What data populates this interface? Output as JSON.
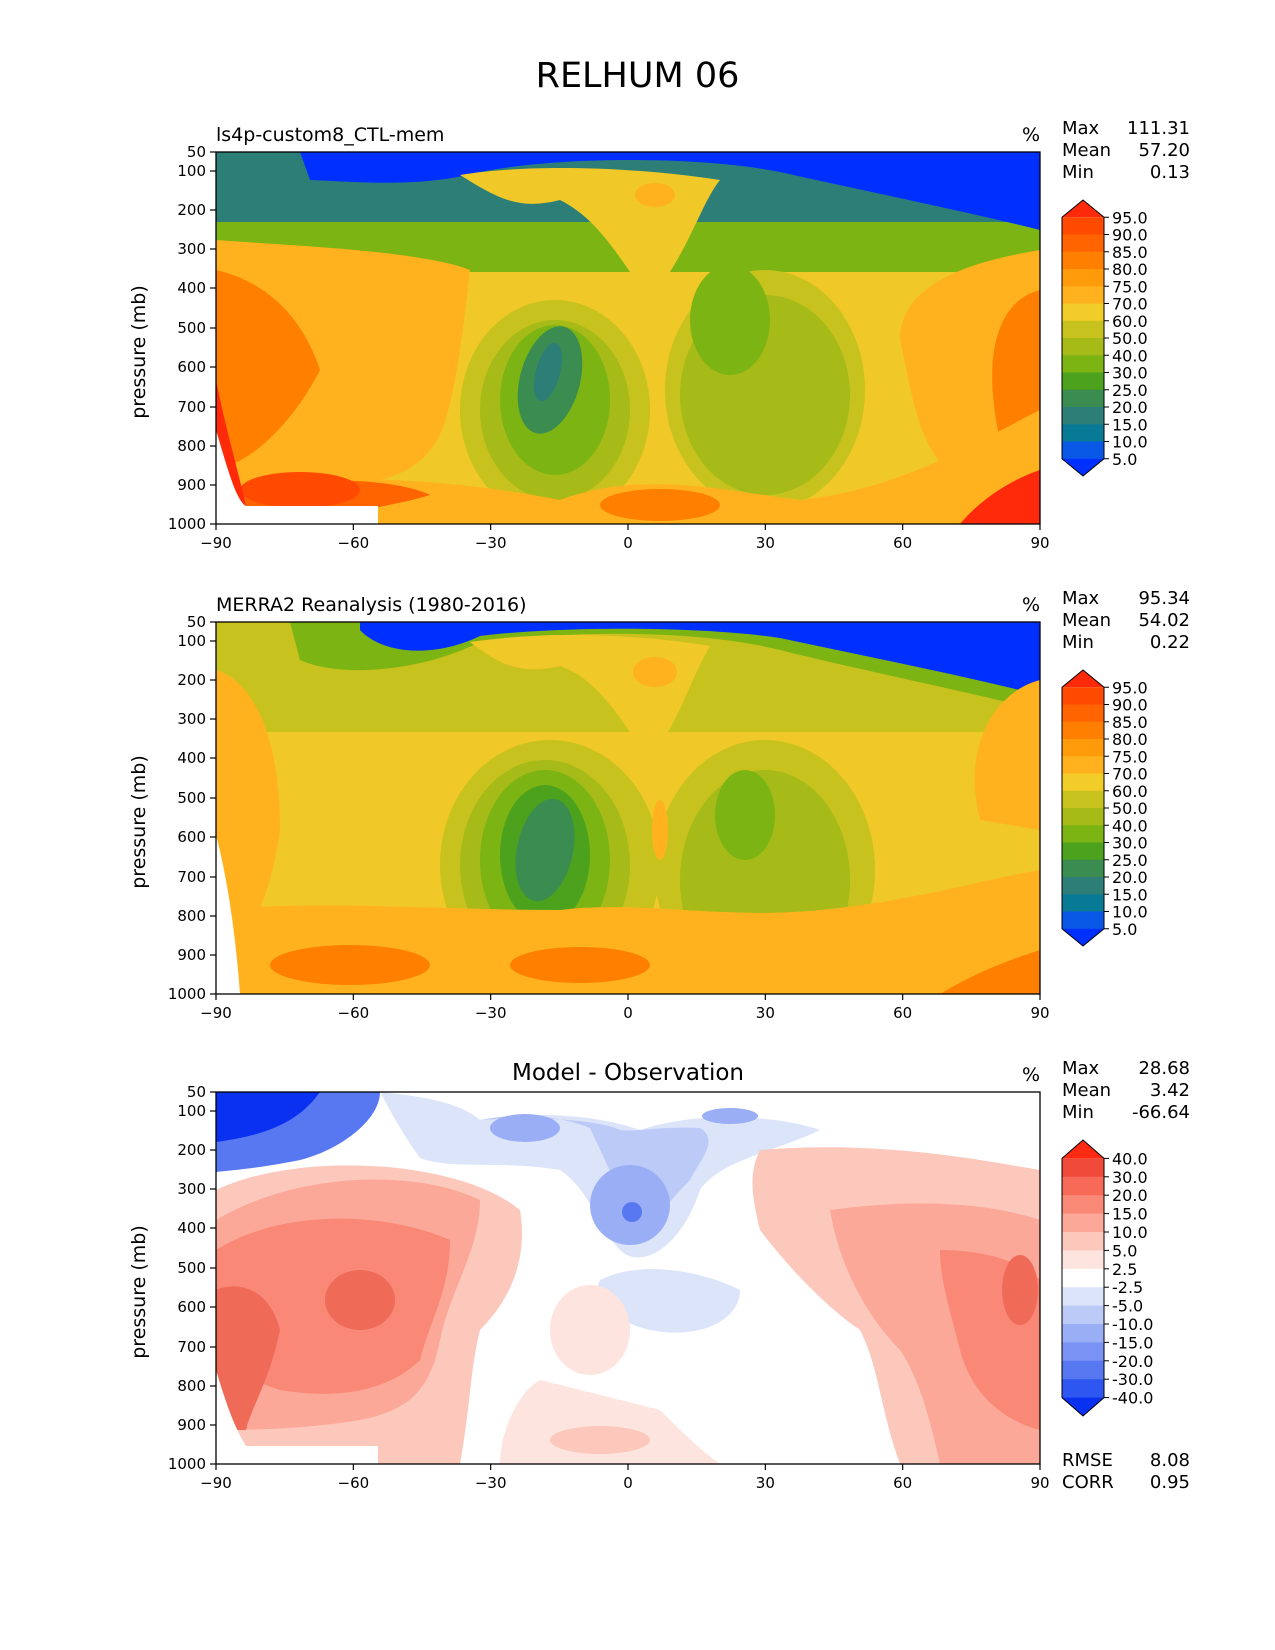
{
  "title": "RELHUM 06",
  "chart_data": [
    {
      "type": "heatmap",
      "title": "ls4p-custom8_CTL-mem",
      "units": "%",
      "stats": [
        [
          "Max",
          "111.31"
        ],
        [
          "Mean",
          "57.20"
        ],
        [
          "Min",
          "0.13"
        ]
      ],
      "ylabel": "pressure (mb)",
      "x_ticks": [
        "−90",
        "−60",
        "−30",
        "0",
        "30",
        "60",
        "90"
      ],
      "y_ticks": [
        "50",
        "100",
        "200",
        "300",
        "400",
        "500",
        "600",
        "700",
        "800",
        "900",
        "1000"
      ],
      "xlim": [
        -90,
        90
      ],
      "ylim": [
        1000,
        50
      ],
      "colorbar_levels": [
        "95.0",
        "90.0",
        "85.0",
        "80.0",
        "75.0",
        "70.0",
        "60.0",
        "50.0",
        "40.0",
        "30.0",
        "25.0",
        "20.0",
        "15.0",
        "10.0",
        "5.0"
      ],
      "colorbar_colors": [
        "#ff2a0a",
        "#ff4a00",
        "#ff6400",
        "#ff8000",
        "#ff9a0a",
        "#ffb21e",
        "#f2cc28",
        "#c8c21e",
        "#a6ba18",
        "#7cb414",
        "#4ca21c",
        "#3a8c50",
        "#2e7e78",
        "#087a96",
        "#0a58e6",
        "#0030ff"
      ]
    },
    {
      "type": "heatmap",
      "title": "MERRA2 Reanalysis (1980-2016)",
      "units": "%",
      "stats": [
        [
          "Max",
          "95.34"
        ],
        [
          "Mean",
          "54.02"
        ],
        [
          "Min",
          "0.22"
        ]
      ],
      "ylabel": "pressure (mb)",
      "x_ticks": [
        "−90",
        "−60",
        "−30",
        "0",
        "30",
        "60",
        "90"
      ],
      "y_ticks": [
        "50",
        "100",
        "200",
        "300",
        "400",
        "500",
        "600",
        "700",
        "800",
        "900",
        "1000"
      ],
      "xlim": [
        -90,
        90
      ],
      "ylim": [
        1000,
        50
      ],
      "colorbar_levels": [
        "95.0",
        "90.0",
        "85.0",
        "80.0",
        "75.0",
        "70.0",
        "60.0",
        "50.0",
        "40.0",
        "30.0",
        "25.0",
        "20.0",
        "15.0",
        "10.0",
        "5.0"
      ],
      "colorbar_colors": [
        "#ff2a0a",
        "#ff4a00",
        "#ff6400",
        "#ff8000",
        "#ff9a0a",
        "#ffb21e",
        "#f2cc28",
        "#c8c21e",
        "#a6ba18",
        "#7cb414",
        "#4ca21c",
        "#3a8c50",
        "#2e7e78",
        "#087a96",
        "#0a58e6",
        "#0030ff"
      ]
    },
    {
      "type": "heatmap",
      "title": "Model - Observation",
      "units": "%",
      "stats": [
        [
          "Max",
          "28.68"
        ],
        [
          "Mean",
          "3.42"
        ],
        [
          "Min",
          "-66.64"
        ]
      ],
      "extra_stats": [
        [
          "RMSE",
          "8.08"
        ],
        [
          "CORR",
          "0.95"
        ]
      ],
      "ylabel": "pressure (mb)",
      "x_ticks": [
        "−90",
        "−60",
        "−30",
        "0",
        "30",
        "60",
        "90"
      ],
      "y_ticks": [
        "50",
        "100",
        "200",
        "300",
        "400",
        "500",
        "600",
        "700",
        "800",
        "900",
        "1000"
      ],
      "xlim": [
        -90,
        90
      ],
      "ylim": [
        1000,
        50
      ],
      "colorbar_levels": [
        "40.0",
        "30.0",
        "20.0",
        "15.0",
        "10.0",
        "5.0",
        "2.5",
        "-2.5",
        "-5.0",
        "-10.0",
        "-15.0",
        "-20.0",
        "-30.0",
        "-40.0"
      ],
      "colorbar_colors": [
        "#ff2a12",
        "#f04a3a",
        "#f86a58",
        "#fa8876",
        "#fba898",
        "#fdc8bc",
        "#fee4de",
        "#ffffff",
        "#dce4fa",
        "#bccaf8",
        "#9aaef6",
        "#7a92f4",
        "#5878f2",
        "#2e56f0",
        "#0a30f0"
      ]
    }
  ]
}
